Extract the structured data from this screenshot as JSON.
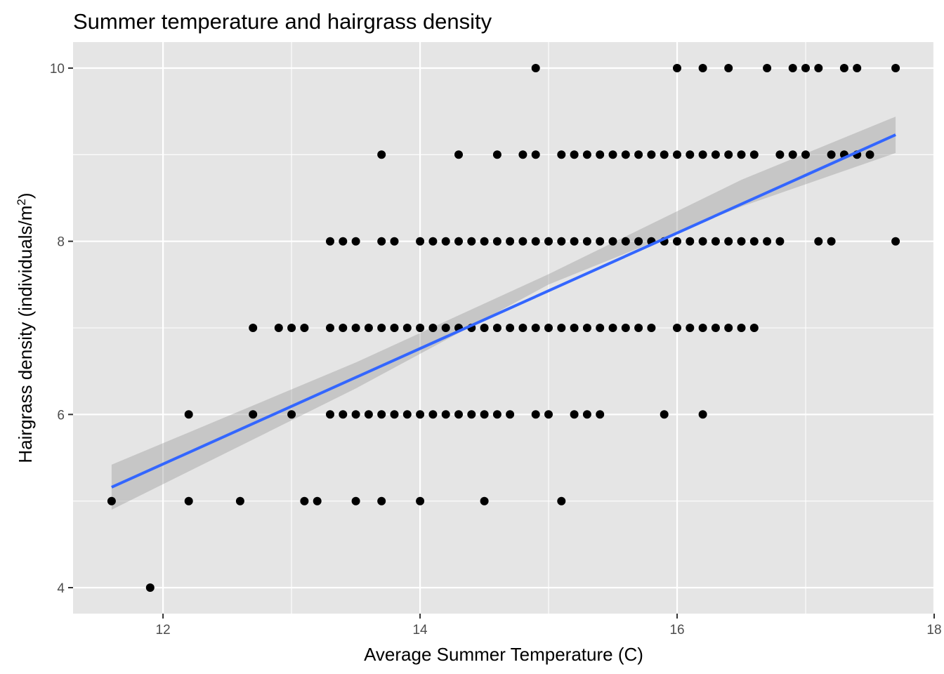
{
  "chart_data": {
    "type": "scatter",
    "title": "Summer temperature and hairgrass density",
    "xlabel": "Average Summer Temperature (C)",
    "ylabel_main": "Hairgrass density (individuals/m",
    "ylabel_sup": "2",
    "ylabel_end": ")",
    "xlim": [
      11.3,
      18.0
    ],
    "ylim": [
      3.7,
      10.3
    ],
    "x_ticks": [
      12,
      14,
      16,
      18
    ],
    "y_ticks": [
      4,
      6,
      8,
      10
    ],
    "grid": true,
    "colors": {
      "panel": "#e5e5e5",
      "points": "#000000",
      "line": "#3366ff",
      "band": "#999999"
    },
    "points": [
      {
        "x": 14.9,
        "y": 10
      },
      {
        "x": 16.0,
        "y": 10
      },
      {
        "x": 16.2,
        "y": 10
      },
      {
        "x": 16.4,
        "y": 10
      },
      {
        "x": 16.7,
        "y": 10
      },
      {
        "x": 16.9,
        "y": 10
      },
      {
        "x": 17.0,
        "y": 10
      },
      {
        "x": 17.1,
        "y": 10
      },
      {
        "x": 17.3,
        "y": 10
      },
      {
        "x": 17.4,
        "y": 10
      },
      {
        "x": 17.7,
        "y": 10
      },
      {
        "x": 13.7,
        "y": 9
      },
      {
        "x": 14.3,
        "y": 9
      },
      {
        "x": 14.6,
        "y": 9
      },
      {
        "x": 14.8,
        "y": 9
      },
      {
        "x": 14.9,
        "y": 9
      },
      {
        "x": 15.1,
        "y": 9
      },
      {
        "x": 15.2,
        "y": 9
      },
      {
        "x": 15.3,
        "y": 9
      },
      {
        "x": 15.4,
        "y": 9
      },
      {
        "x": 15.5,
        "y": 9
      },
      {
        "x": 15.6,
        "y": 9
      },
      {
        "x": 15.7,
        "y": 9
      },
      {
        "x": 15.8,
        "y": 9
      },
      {
        "x": 15.9,
        "y": 9
      },
      {
        "x": 16.0,
        "y": 9
      },
      {
        "x": 16.1,
        "y": 9
      },
      {
        "x": 16.2,
        "y": 9
      },
      {
        "x": 16.3,
        "y": 9
      },
      {
        "x": 16.4,
        "y": 9
      },
      {
        "x": 16.5,
        "y": 9
      },
      {
        "x": 16.6,
        "y": 9
      },
      {
        "x": 16.8,
        "y": 9
      },
      {
        "x": 16.9,
        "y": 9
      },
      {
        "x": 17.0,
        "y": 9
      },
      {
        "x": 17.2,
        "y": 9
      },
      {
        "x": 17.3,
        "y": 9
      },
      {
        "x": 17.4,
        "y": 9
      },
      {
        "x": 17.5,
        "y": 9
      },
      {
        "x": 13.3,
        "y": 8
      },
      {
        "x": 13.4,
        "y": 8
      },
      {
        "x": 13.5,
        "y": 8
      },
      {
        "x": 13.7,
        "y": 8
      },
      {
        "x": 13.8,
        "y": 8
      },
      {
        "x": 14.0,
        "y": 8
      },
      {
        "x": 14.1,
        "y": 8
      },
      {
        "x": 14.2,
        "y": 8
      },
      {
        "x": 14.3,
        "y": 8
      },
      {
        "x": 14.4,
        "y": 8
      },
      {
        "x": 14.5,
        "y": 8
      },
      {
        "x": 14.6,
        "y": 8
      },
      {
        "x": 14.7,
        "y": 8
      },
      {
        "x": 14.8,
        "y": 8
      },
      {
        "x": 14.9,
        "y": 8
      },
      {
        "x": 15.0,
        "y": 8
      },
      {
        "x": 15.1,
        "y": 8
      },
      {
        "x": 15.2,
        "y": 8
      },
      {
        "x": 15.3,
        "y": 8
      },
      {
        "x": 15.4,
        "y": 8
      },
      {
        "x": 15.5,
        "y": 8
      },
      {
        "x": 15.6,
        "y": 8
      },
      {
        "x": 15.7,
        "y": 8
      },
      {
        "x": 15.8,
        "y": 8
      },
      {
        "x": 15.9,
        "y": 8
      },
      {
        "x": 16.0,
        "y": 8
      },
      {
        "x": 16.1,
        "y": 8
      },
      {
        "x": 16.2,
        "y": 8
      },
      {
        "x": 16.3,
        "y": 8
      },
      {
        "x": 16.4,
        "y": 8
      },
      {
        "x": 16.5,
        "y": 8
      },
      {
        "x": 16.6,
        "y": 8
      },
      {
        "x": 16.7,
        "y": 8
      },
      {
        "x": 16.8,
        "y": 8
      },
      {
        "x": 17.1,
        "y": 8
      },
      {
        "x": 17.2,
        "y": 8
      },
      {
        "x": 17.7,
        "y": 8
      },
      {
        "x": 12.7,
        "y": 7
      },
      {
        "x": 12.9,
        "y": 7
      },
      {
        "x": 13.0,
        "y": 7
      },
      {
        "x": 13.1,
        "y": 7
      },
      {
        "x": 13.3,
        "y": 7
      },
      {
        "x": 13.4,
        "y": 7
      },
      {
        "x": 13.5,
        "y": 7
      },
      {
        "x": 13.6,
        "y": 7
      },
      {
        "x": 13.7,
        "y": 7
      },
      {
        "x": 13.8,
        "y": 7
      },
      {
        "x": 13.9,
        "y": 7
      },
      {
        "x": 14.0,
        "y": 7
      },
      {
        "x": 14.1,
        "y": 7
      },
      {
        "x": 14.2,
        "y": 7
      },
      {
        "x": 14.3,
        "y": 7
      },
      {
        "x": 14.4,
        "y": 7
      },
      {
        "x": 14.5,
        "y": 7
      },
      {
        "x": 14.6,
        "y": 7
      },
      {
        "x": 14.7,
        "y": 7
      },
      {
        "x": 14.8,
        "y": 7
      },
      {
        "x": 14.9,
        "y": 7
      },
      {
        "x": 15.0,
        "y": 7
      },
      {
        "x": 15.1,
        "y": 7
      },
      {
        "x": 15.2,
        "y": 7
      },
      {
        "x": 15.3,
        "y": 7
      },
      {
        "x": 15.4,
        "y": 7
      },
      {
        "x": 15.5,
        "y": 7
      },
      {
        "x": 15.6,
        "y": 7
      },
      {
        "x": 15.7,
        "y": 7
      },
      {
        "x": 15.8,
        "y": 7
      },
      {
        "x": 16.0,
        "y": 7
      },
      {
        "x": 16.1,
        "y": 7
      },
      {
        "x": 16.2,
        "y": 7
      },
      {
        "x": 16.3,
        "y": 7
      },
      {
        "x": 16.4,
        "y": 7
      },
      {
        "x": 16.5,
        "y": 7
      },
      {
        "x": 16.6,
        "y": 7
      },
      {
        "x": 12.2,
        "y": 6
      },
      {
        "x": 12.7,
        "y": 6
      },
      {
        "x": 13.0,
        "y": 6
      },
      {
        "x": 13.3,
        "y": 6
      },
      {
        "x": 13.4,
        "y": 6
      },
      {
        "x": 13.5,
        "y": 6
      },
      {
        "x": 13.6,
        "y": 6
      },
      {
        "x": 13.7,
        "y": 6
      },
      {
        "x": 13.8,
        "y": 6
      },
      {
        "x": 13.9,
        "y": 6
      },
      {
        "x": 14.0,
        "y": 6
      },
      {
        "x": 14.1,
        "y": 6
      },
      {
        "x": 14.2,
        "y": 6
      },
      {
        "x": 14.3,
        "y": 6
      },
      {
        "x": 14.4,
        "y": 6
      },
      {
        "x": 14.5,
        "y": 6
      },
      {
        "x": 14.6,
        "y": 6
      },
      {
        "x": 14.7,
        "y": 6
      },
      {
        "x": 14.9,
        "y": 6
      },
      {
        "x": 15.0,
        "y": 6
      },
      {
        "x": 15.2,
        "y": 6
      },
      {
        "x": 15.3,
        "y": 6
      },
      {
        "x": 15.4,
        "y": 6
      },
      {
        "x": 15.9,
        "y": 6
      },
      {
        "x": 16.2,
        "y": 6
      },
      {
        "x": 11.6,
        "y": 5
      },
      {
        "x": 12.2,
        "y": 5
      },
      {
        "x": 12.6,
        "y": 5
      },
      {
        "x": 13.1,
        "y": 5
      },
      {
        "x": 13.2,
        "y": 5
      },
      {
        "x": 13.5,
        "y": 5
      },
      {
        "x": 13.7,
        "y": 5
      },
      {
        "x": 14.0,
        "y": 5
      },
      {
        "x": 14.5,
        "y": 5
      },
      {
        "x": 15.1,
        "y": 5
      },
      {
        "x": 11.9,
        "y": 4
      }
    ],
    "fit_line": {
      "x": [
        11.6,
        17.7
      ],
      "y": [
        5.16,
        9.23
      ]
    },
    "confidence_band": {
      "x": [
        11.6,
        13.5,
        15.0,
        16.5,
        17.7
      ],
      "lower": [
        4.9,
        6.3,
        7.5,
        8.4,
        9.02
      ],
      "upper": [
        5.42,
        6.6,
        7.62,
        8.71,
        9.44
      ]
    }
  }
}
